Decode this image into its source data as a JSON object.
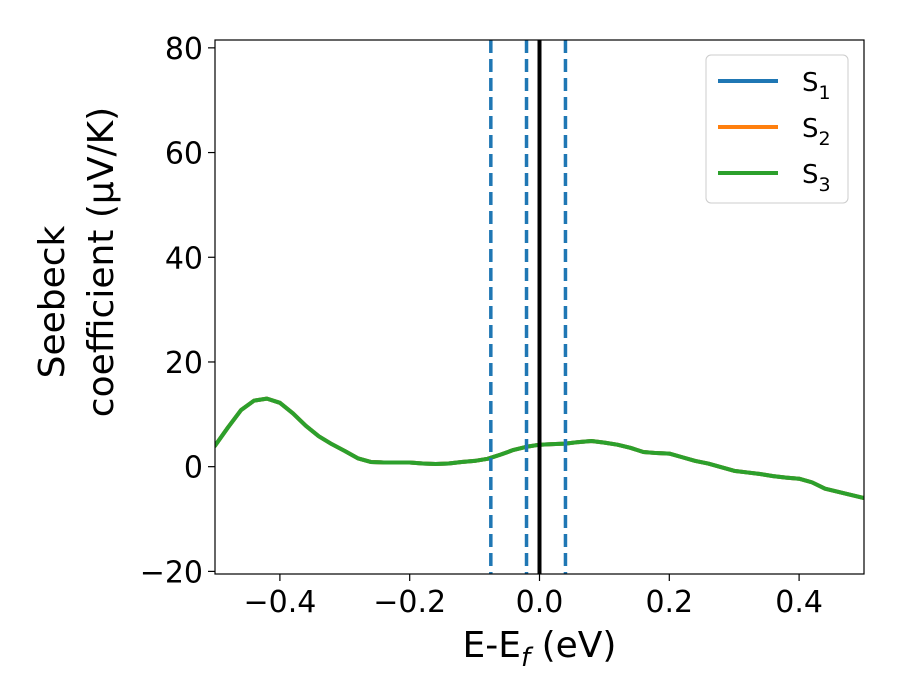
{
  "chart_data": {
    "type": "line",
    "xlabel": {
      "main": "E-E",
      "sub": "f",
      "tail": " (eV)"
    },
    "ylabel": {
      "line1": "Seebeck",
      "line2": "coefficient  (μV/K)"
    },
    "xlim": [
      -0.5,
      0.5
    ],
    "ylim": [
      -20.5,
      81.5
    ],
    "x_ticks": [
      -0.4,
      -0.2,
      0.0,
      0.2,
      0.4
    ],
    "x_tick_labels": [
      "−0.4",
      "−0.2",
      "0.0",
      "0.2",
      "0.4"
    ],
    "y_ticks": [
      -20,
      0,
      20,
      40,
      60,
      80
    ],
    "y_tick_labels": [
      "−20",
      "0",
      "20",
      "40",
      "60",
      "80"
    ],
    "grid": false,
    "legend_placement": "top-right",
    "legend": [
      {
        "base": "S",
        "sub": "1",
        "color": "#1f77b4"
      },
      {
        "base": "S",
        "sub": "2",
        "color": "#ff7f0e"
      },
      {
        "base": "S",
        "sub": "3",
        "color": "#2ca02c"
      }
    ],
    "series": [
      {
        "color": "#1f77b4",
        "x": [
          -0.5,
          -0.48,
          -0.46,
          -0.44,
          -0.42,
          -0.4,
          -0.38,
          -0.36,
          -0.34,
          -0.32,
          -0.3,
          -0.28,
          -0.26,
          -0.24,
          -0.22,
          -0.2,
          -0.18,
          -0.16,
          -0.14,
          -0.12,
          -0.1,
          -0.08,
          -0.06,
          -0.04,
          -0.02,
          0.0,
          0.02,
          0.04,
          0.06,
          0.08,
          0.1,
          0.12,
          0.14,
          0.16,
          0.18,
          0.2,
          0.22,
          0.24,
          0.26,
          0.28,
          0.3,
          0.32,
          0.34,
          0.36,
          0.38,
          0.4,
          0.42,
          0.44,
          0.46,
          0.48,
          0.5
        ],
        "y": [
          4.0,
          7.5,
          10.8,
          12.6,
          13.0,
          12.2,
          10.2,
          7.8,
          5.8,
          4.3,
          3.0,
          1.6,
          0.9,
          0.8,
          0.8,
          0.8,
          0.6,
          0.5,
          0.6,
          0.9,
          1.1,
          1.5,
          2.3,
          3.2,
          3.8,
          4.2,
          4.3,
          4.4,
          4.7,
          4.9,
          4.6,
          4.2,
          3.6,
          2.8,
          2.6,
          2.5,
          1.8,
          1.1,
          0.6,
          -0.1,
          -0.8,
          -1.1,
          -1.4,
          -1.8,
          -2.1,
          -2.3,
          -3.0,
          -4.2,
          -4.8,
          -5.4,
          -6.0
        ]
      },
      {
        "color": "#ff7f0e",
        "x": [
          -0.5,
          -0.48,
          -0.46,
          -0.44,
          -0.42,
          -0.4,
          -0.38,
          -0.36,
          -0.34,
          -0.32,
          -0.3,
          -0.28,
          -0.26,
          -0.24,
          -0.22,
          -0.2,
          -0.18,
          -0.16,
          -0.14,
          -0.12,
          -0.1,
          -0.08,
          -0.06,
          -0.04,
          -0.02,
          0.0,
          0.02,
          0.04,
          0.06,
          0.08,
          0.1,
          0.12,
          0.14,
          0.16,
          0.18,
          0.2,
          0.22,
          0.24,
          0.26,
          0.28,
          0.3,
          0.32,
          0.34,
          0.36,
          0.38,
          0.4,
          0.42,
          0.44,
          0.46,
          0.48,
          0.5
        ],
        "y": [
          4.0,
          7.5,
          10.8,
          12.6,
          13.0,
          12.2,
          10.2,
          7.8,
          5.8,
          4.3,
          3.0,
          1.6,
          0.9,
          0.8,
          0.8,
          0.8,
          0.6,
          0.5,
          0.6,
          0.9,
          1.1,
          1.5,
          2.3,
          3.2,
          3.8,
          4.2,
          4.3,
          4.4,
          4.7,
          4.9,
          4.6,
          4.2,
          3.6,
          2.8,
          2.6,
          2.5,
          1.8,
          1.1,
          0.6,
          -0.1,
          -0.8,
          -1.1,
          -1.4,
          -1.8,
          -2.1,
          -2.3,
          -3.0,
          -4.2,
          -4.8,
          -5.4,
          -6.0
        ]
      },
      {
        "color": "#2ca02c",
        "x": [
          -0.5,
          -0.48,
          -0.46,
          -0.44,
          -0.42,
          -0.4,
          -0.38,
          -0.36,
          -0.34,
          -0.32,
          -0.3,
          -0.28,
          -0.26,
          -0.24,
          -0.22,
          -0.2,
          -0.18,
          -0.16,
          -0.14,
          -0.12,
          -0.1,
          -0.08,
          -0.06,
          -0.04,
          -0.02,
          0.0,
          0.02,
          0.04,
          0.06,
          0.08,
          0.1,
          0.12,
          0.14,
          0.16,
          0.18,
          0.2,
          0.22,
          0.24,
          0.26,
          0.28,
          0.3,
          0.32,
          0.34,
          0.36,
          0.38,
          0.4,
          0.42,
          0.44,
          0.46,
          0.48,
          0.5
        ],
        "y": [
          4.0,
          7.5,
          10.8,
          12.6,
          13.0,
          12.2,
          10.2,
          7.8,
          5.8,
          4.3,
          3.0,
          1.6,
          0.9,
          0.8,
          0.8,
          0.8,
          0.6,
          0.5,
          0.6,
          0.9,
          1.1,
          1.5,
          2.3,
          3.2,
          3.8,
          4.2,
          4.3,
          4.4,
          4.7,
          4.9,
          4.6,
          4.2,
          3.6,
          2.8,
          2.6,
          2.5,
          1.8,
          1.1,
          0.6,
          -0.1,
          -0.8,
          -1.1,
          -1.4,
          -1.8,
          -2.1,
          -2.3,
          -3.0,
          -4.2,
          -4.8,
          -5.4,
          -6.0
        ]
      }
    ],
    "vertical_lines": [
      {
        "x": -0.075,
        "style": "dashed",
        "color": "#1f77b4"
      },
      {
        "x": -0.02,
        "style": "dashed",
        "color": "#1f77b4"
      },
      {
        "x": 0.0,
        "style": "solid",
        "color": "#000000"
      },
      {
        "x": 0.04,
        "style": "dashed",
        "color": "#1f77b4"
      }
    ]
  }
}
